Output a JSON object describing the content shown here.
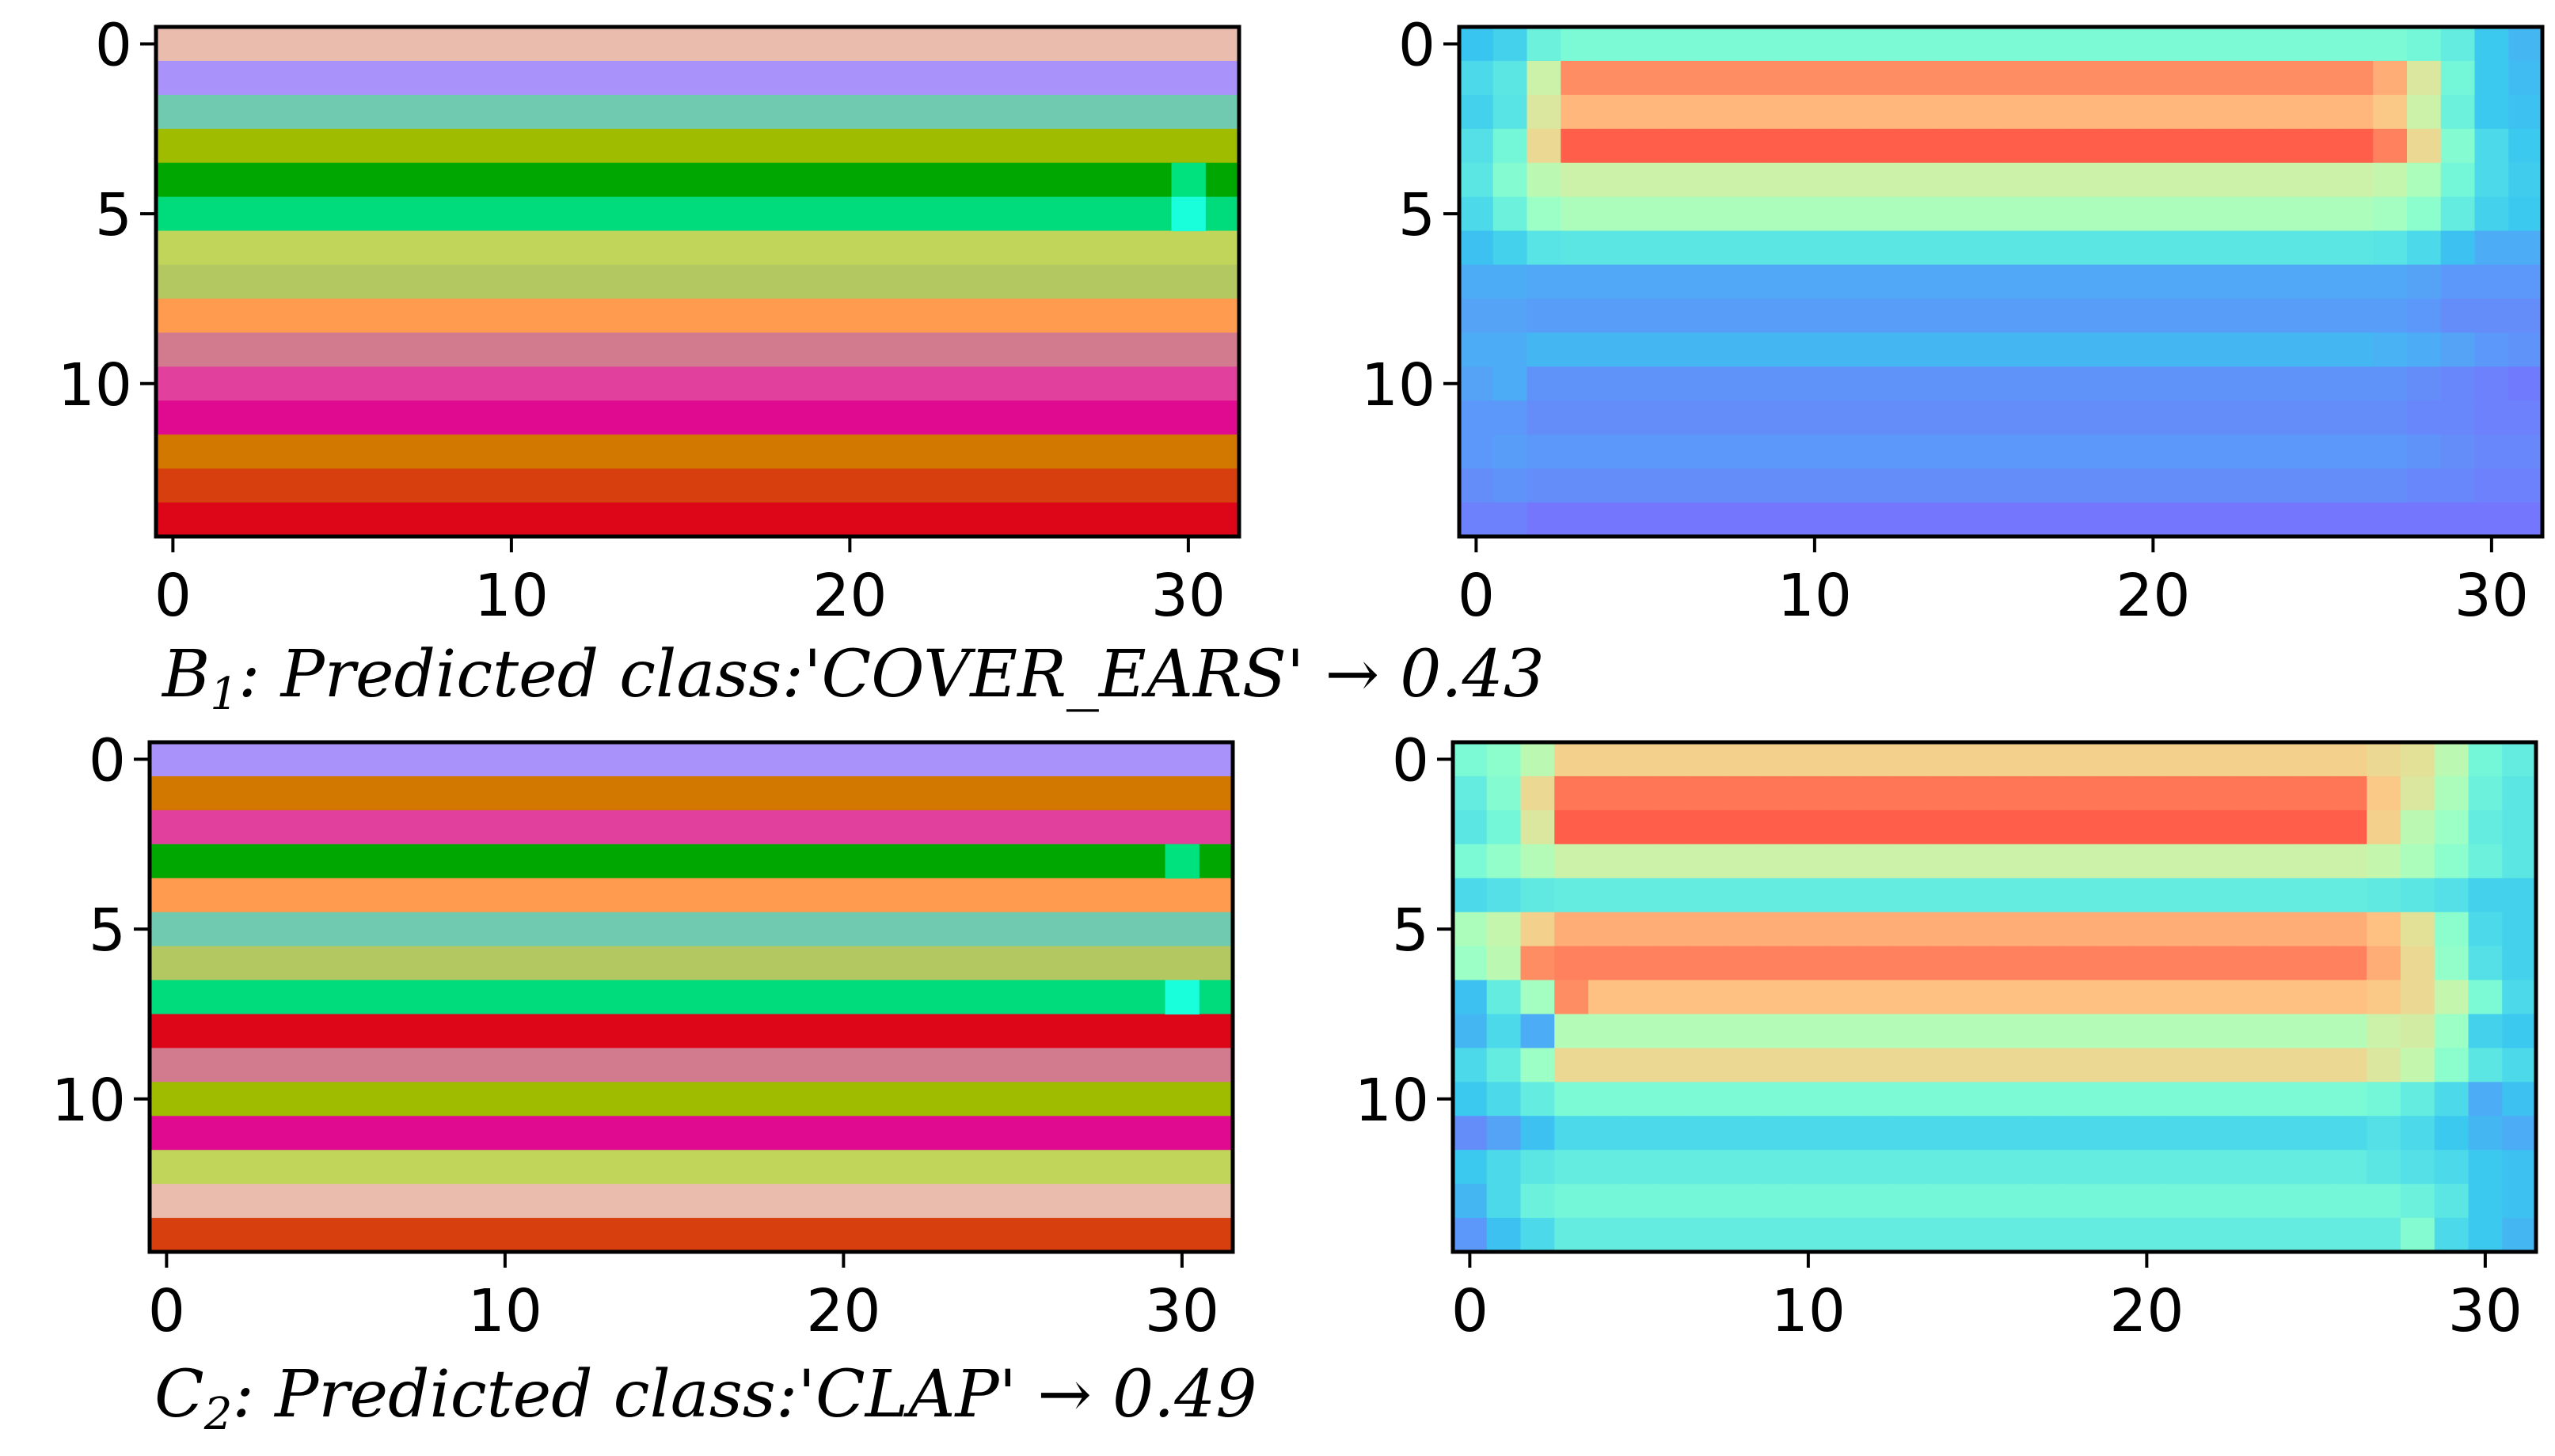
{
  "chart_data": [
    {
      "type": "heatmap",
      "panel": "B1-labels",
      "rows": 15,
      "cols": 32,
      "xlim": [
        -0.5,
        31.5
      ],
      "ylim": [
        14.5,
        -0.5
      ],
      "xticks": [
        "0",
        "10",
        "20",
        "30"
      ],
      "yticks": [
        "0",
        "5",
        "10"
      ],
      "row_colors": [
        "#E9BCAE",
        "#A993FA",
        "#6FCAB0",
        "#A0BC00",
        "#00A700",
        "#00DB7C",
        "#C1D55B",
        "#B3C860",
        "#FE9B4F",
        "#D27A8E",
        "#E1419D",
        "#E00A91",
        "#D27700",
        "#D7400E",
        "#DD0619"
      ],
      "overrides": [
        {
          "row": 4,
          "col": 30,
          "color": "#00E27E"
        },
        {
          "row": 5,
          "col": 30,
          "color": "#19FEDB"
        }
      ]
    },
    {
      "type": "heatmap",
      "panel": "B1-activation",
      "rows": 15,
      "cols": 32,
      "xlim": [
        -0.5,
        31.5
      ],
      "ylim": [
        14.5,
        -0.5
      ],
      "xticks": [
        "0",
        "10",
        "20",
        "30"
      ],
      "yticks": [
        "0",
        "5",
        "10"
      ],
      "colormap": "rainbow",
      "values": [
        [
          0.25,
          0.28,
          0.38,
          0.42,
          0.42,
          0.42,
          0.42,
          0.42,
          0.42,
          0.42,
          0.42,
          0.42,
          0.42,
          0.42,
          0.42,
          0.42,
          0.42,
          0.42,
          0.42,
          0.42,
          0.42,
          0.42,
          0.42,
          0.42,
          0.42,
          0.42,
          0.42,
          0.42,
          0.4,
          0.36,
          0.26,
          0.22
        ],
        [
          0.3,
          0.34,
          0.62,
          0.86,
          0.86,
          0.86,
          0.86,
          0.86,
          0.86,
          0.86,
          0.86,
          0.86,
          0.86,
          0.86,
          0.86,
          0.86,
          0.86,
          0.86,
          0.86,
          0.86,
          0.86,
          0.86,
          0.86,
          0.86,
          0.86,
          0.86,
          0.86,
          0.8,
          0.66,
          0.4,
          0.26,
          0.23
        ],
        [
          0.28,
          0.33,
          0.66,
          0.78,
          0.78,
          0.78,
          0.78,
          0.78,
          0.78,
          0.78,
          0.78,
          0.78,
          0.78,
          0.78,
          0.78,
          0.78,
          0.78,
          0.78,
          0.78,
          0.78,
          0.78,
          0.78,
          0.78,
          0.78,
          0.78,
          0.78,
          0.78,
          0.74,
          0.62,
          0.38,
          0.26,
          0.24
        ],
        [
          0.32,
          0.4,
          0.7,
          0.94,
          0.94,
          0.94,
          0.94,
          0.94,
          0.94,
          0.94,
          0.94,
          0.94,
          0.94,
          0.94,
          0.94,
          0.94,
          0.94,
          0.94,
          0.94,
          0.94,
          0.94,
          0.94,
          0.94,
          0.94,
          0.94,
          0.94,
          0.94,
          0.88,
          0.7,
          0.44,
          0.3,
          0.26
        ],
        [
          0.34,
          0.44,
          0.58,
          0.62,
          0.62,
          0.62,
          0.62,
          0.62,
          0.62,
          0.62,
          0.62,
          0.62,
          0.62,
          0.62,
          0.62,
          0.62,
          0.62,
          0.62,
          0.62,
          0.62,
          0.62,
          0.62,
          0.62,
          0.62,
          0.62,
          0.62,
          0.62,
          0.6,
          0.54,
          0.4,
          0.3,
          0.27
        ],
        [
          0.3,
          0.38,
          0.5,
          0.54,
          0.54,
          0.54,
          0.54,
          0.54,
          0.54,
          0.54,
          0.54,
          0.54,
          0.54,
          0.54,
          0.54,
          0.54,
          0.54,
          0.54,
          0.54,
          0.54,
          0.54,
          0.54,
          0.54,
          0.54,
          0.54,
          0.54,
          0.54,
          0.52,
          0.46,
          0.36,
          0.28,
          0.26
        ],
        [
          0.24,
          0.28,
          0.33,
          0.34,
          0.34,
          0.34,
          0.34,
          0.34,
          0.34,
          0.34,
          0.34,
          0.34,
          0.34,
          0.34,
          0.34,
          0.34,
          0.34,
          0.34,
          0.34,
          0.34,
          0.34,
          0.34,
          0.34,
          0.34,
          0.34,
          0.34,
          0.34,
          0.33,
          0.3,
          0.24,
          0.2,
          0.2
        ],
        [
          0.2,
          0.2,
          0.19,
          0.19,
          0.19,
          0.19,
          0.19,
          0.19,
          0.19,
          0.19,
          0.19,
          0.19,
          0.19,
          0.19,
          0.19,
          0.19,
          0.19,
          0.19,
          0.19,
          0.19,
          0.19,
          0.19,
          0.19,
          0.19,
          0.19,
          0.19,
          0.19,
          0.19,
          0.18,
          0.16,
          0.16,
          0.16
        ],
        [
          0.18,
          0.18,
          0.17,
          0.17,
          0.17,
          0.17,
          0.17,
          0.17,
          0.17,
          0.17,
          0.17,
          0.17,
          0.17,
          0.17,
          0.17,
          0.17,
          0.17,
          0.17,
          0.17,
          0.17,
          0.17,
          0.17,
          0.17,
          0.17,
          0.17,
          0.17,
          0.17,
          0.17,
          0.16,
          0.14,
          0.14,
          0.14
        ],
        [
          0.2,
          0.2,
          0.22,
          0.22,
          0.22,
          0.22,
          0.22,
          0.22,
          0.22,
          0.22,
          0.22,
          0.22,
          0.22,
          0.22,
          0.22,
          0.22,
          0.22,
          0.22,
          0.22,
          0.22,
          0.22,
          0.22,
          0.22,
          0.22,
          0.22,
          0.22,
          0.22,
          0.21,
          0.2,
          0.18,
          0.16,
          0.15
        ],
        [
          0.18,
          0.2,
          0.15,
          0.15,
          0.15,
          0.15,
          0.15,
          0.15,
          0.15,
          0.15,
          0.15,
          0.15,
          0.15,
          0.15,
          0.15,
          0.15,
          0.15,
          0.15,
          0.15,
          0.15,
          0.15,
          0.15,
          0.15,
          0.15,
          0.15,
          0.15,
          0.15,
          0.15,
          0.14,
          0.13,
          0.12,
          0.11
        ],
        [
          0.16,
          0.16,
          0.14,
          0.14,
          0.14,
          0.14,
          0.14,
          0.14,
          0.14,
          0.14,
          0.14,
          0.14,
          0.14,
          0.14,
          0.14,
          0.14,
          0.14,
          0.14,
          0.14,
          0.14,
          0.14,
          0.14,
          0.14,
          0.14,
          0.14,
          0.14,
          0.14,
          0.14,
          0.13,
          0.13,
          0.12,
          0.12
        ],
        [
          0.16,
          0.17,
          0.16,
          0.16,
          0.16,
          0.16,
          0.16,
          0.16,
          0.16,
          0.16,
          0.16,
          0.16,
          0.16,
          0.16,
          0.16,
          0.16,
          0.16,
          0.16,
          0.16,
          0.16,
          0.16,
          0.16,
          0.16,
          0.16,
          0.16,
          0.16,
          0.16,
          0.16,
          0.15,
          0.14,
          0.13,
          0.13
        ],
        [
          0.14,
          0.15,
          0.14,
          0.14,
          0.14,
          0.14,
          0.14,
          0.14,
          0.14,
          0.14,
          0.14,
          0.14,
          0.14,
          0.14,
          0.14,
          0.14,
          0.14,
          0.14,
          0.14,
          0.14,
          0.14,
          0.14,
          0.14,
          0.14,
          0.14,
          0.14,
          0.14,
          0.14,
          0.13,
          0.13,
          0.12,
          0.12
        ],
        [
          0.12,
          0.12,
          0.1,
          0.1,
          0.1,
          0.1,
          0.1,
          0.1,
          0.1,
          0.1,
          0.1,
          0.1,
          0.1,
          0.1,
          0.1,
          0.1,
          0.1,
          0.1,
          0.1,
          0.1,
          0.1,
          0.1,
          0.1,
          0.1,
          0.1,
          0.1,
          0.1,
          0.1,
          0.1,
          0.1,
          0.1,
          0.1
        ]
      ]
    },
    {
      "type": "heatmap",
      "panel": "C2-labels",
      "rows": 15,
      "cols": 32,
      "xlim": [
        -0.5,
        31.5
      ],
      "ylim": [
        14.5,
        -0.5
      ],
      "xticks": [
        "0",
        "10",
        "20",
        "30"
      ],
      "yticks": [
        "0",
        "5",
        "10"
      ],
      "row_colors": [
        "#A993FA",
        "#D27700",
        "#E1419D",
        "#00A700",
        "#FE9B4F",
        "#6FCAB0",
        "#B3C860",
        "#00DB7C",
        "#DD0619",
        "#D27A8E",
        "#A0BC00",
        "#E00A91",
        "#C1D55B",
        "#E9BCAE",
        "#D7400E"
      ],
      "overrides": [
        {
          "row": 3,
          "col": 30,
          "color": "#00E27E"
        },
        {
          "row": 7,
          "col": 30,
          "color": "#19FEDB"
        }
      ]
    },
    {
      "type": "heatmap",
      "panel": "C2-activation",
      "rows": 15,
      "cols": 32,
      "xlim": [
        -0.5,
        31.5
      ],
      "ylim": [
        14.5,
        -0.5
      ],
      "xticks": [
        "0",
        "10",
        "20",
        "30"
      ],
      "yticks": [
        "0",
        "5",
        "10"
      ],
      "colormap": "rainbow",
      "values": [
        [
          0.42,
          0.46,
          0.58,
          0.72,
          0.72,
          0.72,
          0.72,
          0.72,
          0.72,
          0.72,
          0.72,
          0.72,
          0.72,
          0.72,
          0.72,
          0.72,
          0.72,
          0.72,
          0.72,
          0.72,
          0.72,
          0.72,
          0.72,
          0.72,
          0.72,
          0.72,
          0.72,
          0.7,
          0.68,
          0.58,
          0.4,
          0.36
        ],
        [
          0.36,
          0.44,
          0.7,
          0.9,
          0.9,
          0.9,
          0.9,
          0.9,
          0.9,
          0.9,
          0.9,
          0.9,
          0.9,
          0.9,
          0.9,
          0.9,
          0.9,
          0.9,
          0.9,
          0.9,
          0.9,
          0.9,
          0.9,
          0.9,
          0.9,
          0.9,
          0.9,
          0.74,
          0.66,
          0.54,
          0.38,
          0.34
        ],
        [
          0.34,
          0.4,
          0.66,
          0.94,
          0.94,
          0.94,
          0.94,
          0.94,
          0.94,
          0.94,
          0.94,
          0.94,
          0.94,
          0.94,
          0.94,
          0.94,
          0.94,
          0.94,
          0.94,
          0.94,
          0.94,
          0.94,
          0.94,
          0.94,
          0.94,
          0.94,
          0.94,
          0.72,
          0.58,
          0.5,
          0.36,
          0.34
        ],
        [
          0.42,
          0.48,
          0.56,
          0.62,
          0.62,
          0.62,
          0.62,
          0.62,
          0.62,
          0.62,
          0.62,
          0.62,
          0.62,
          0.62,
          0.62,
          0.62,
          0.62,
          0.62,
          0.62,
          0.62,
          0.62,
          0.62,
          0.62,
          0.62,
          0.62,
          0.62,
          0.62,
          0.6,
          0.54,
          0.46,
          0.38,
          0.34
        ],
        [
          0.3,
          0.32,
          0.35,
          0.36,
          0.36,
          0.36,
          0.36,
          0.36,
          0.36,
          0.36,
          0.36,
          0.36,
          0.36,
          0.36,
          0.36,
          0.36,
          0.36,
          0.36,
          0.36,
          0.36,
          0.36,
          0.36,
          0.36,
          0.36,
          0.36,
          0.36,
          0.36,
          0.35,
          0.34,
          0.32,
          0.28,
          0.28
        ],
        [
          0.54,
          0.6,
          0.72,
          0.8,
          0.8,
          0.8,
          0.8,
          0.8,
          0.8,
          0.8,
          0.8,
          0.8,
          0.8,
          0.8,
          0.8,
          0.8,
          0.8,
          0.8,
          0.8,
          0.8,
          0.8,
          0.8,
          0.8,
          0.8,
          0.8,
          0.8,
          0.8,
          0.76,
          0.68,
          0.46,
          0.3,
          0.28
        ],
        [
          0.5,
          0.58,
          0.86,
          0.88,
          0.88,
          0.88,
          0.88,
          0.88,
          0.88,
          0.88,
          0.88,
          0.88,
          0.88,
          0.88,
          0.88,
          0.88,
          0.88,
          0.88,
          0.88,
          0.88,
          0.88,
          0.88,
          0.88,
          0.88,
          0.88,
          0.88,
          0.88,
          0.8,
          0.7,
          0.48,
          0.32,
          0.28
        ],
        [
          0.24,
          0.36,
          0.52,
          0.86,
          0.76,
          0.76,
          0.76,
          0.76,
          0.76,
          0.76,
          0.76,
          0.76,
          0.76,
          0.76,
          0.76,
          0.76,
          0.76,
          0.76,
          0.76,
          0.76,
          0.76,
          0.76,
          0.76,
          0.76,
          0.76,
          0.76,
          0.76,
          0.74,
          0.7,
          0.6,
          0.42,
          0.3
        ],
        [
          0.22,
          0.3,
          0.2,
          0.56,
          0.56,
          0.56,
          0.56,
          0.56,
          0.56,
          0.56,
          0.56,
          0.56,
          0.56,
          0.56,
          0.56,
          0.56,
          0.56,
          0.56,
          0.56,
          0.56,
          0.56,
          0.56,
          0.56,
          0.56,
          0.56,
          0.56,
          0.56,
          0.62,
          0.64,
          0.5,
          0.28,
          0.26
        ],
        [
          0.3,
          0.36,
          0.5,
          0.7,
          0.7,
          0.7,
          0.7,
          0.7,
          0.7,
          0.7,
          0.7,
          0.7,
          0.7,
          0.7,
          0.7,
          0.7,
          0.7,
          0.7,
          0.7,
          0.7,
          0.7,
          0.7,
          0.7,
          0.7,
          0.7,
          0.7,
          0.7,
          0.66,
          0.6,
          0.46,
          0.34,
          0.3
        ],
        [
          0.26,
          0.3,
          0.36,
          0.42,
          0.42,
          0.42,
          0.42,
          0.42,
          0.42,
          0.42,
          0.42,
          0.42,
          0.42,
          0.42,
          0.42,
          0.42,
          0.42,
          0.42,
          0.42,
          0.42,
          0.42,
          0.42,
          0.42,
          0.42,
          0.42,
          0.42,
          0.42,
          0.4,
          0.36,
          0.3,
          0.2,
          0.24
        ],
        [
          0.14,
          0.18,
          0.24,
          0.3,
          0.3,
          0.3,
          0.3,
          0.3,
          0.3,
          0.3,
          0.3,
          0.3,
          0.3,
          0.3,
          0.3,
          0.3,
          0.3,
          0.3,
          0.3,
          0.3,
          0.3,
          0.3,
          0.3,
          0.3,
          0.3,
          0.3,
          0.3,
          0.32,
          0.3,
          0.26,
          0.22,
          0.2
        ],
        [
          0.26,
          0.3,
          0.34,
          0.36,
          0.36,
          0.36,
          0.36,
          0.36,
          0.36,
          0.36,
          0.36,
          0.36,
          0.36,
          0.36,
          0.36,
          0.36,
          0.36,
          0.36,
          0.36,
          0.36,
          0.36,
          0.36,
          0.36,
          0.36,
          0.36,
          0.36,
          0.36,
          0.34,
          0.32,
          0.3,
          0.26,
          0.24
        ],
        [
          0.22,
          0.3,
          0.38,
          0.4,
          0.4,
          0.4,
          0.4,
          0.4,
          0.4,
          0.4,
          0.4,
          0.4,
          0.4,
          0.4,
          0.4,
          0.4,
          0.4,
          0.4,
          0.4,
          0.4,
          0.4,
          0.4,
          0.4,
          0.4,
          0.4,
          0.4,
          0.4,
          0.4,
          0.38,
          0.34,
          0.26,
          0.24
        ],
        [
          0.16,
          0.24,
          0.3,
          0.36,
          0.36,
          0.36,
          0.36,
          0.36,
          0.36,
          0.36,
          0.36,
          0.36,
          0.36,
          0.36,
          0.36,
          0.36,
          0.36,
          0.36,
          0.36,
          0.36,
          0.36,
          0.36,
          0.36,
          0.36,
          0.36,
          0.36,
          0.36,
          0.36,
          0.44,
          0.3,
          0.26,
          0.22
        ]
      ]
    }
  ],
  "captions": {
    "b1": {
      "letter": "B",
      "sub": "1",
      "text": ": Predicted class:'COVER_EARS' → 0.43"
    },
    "c2": {
      "letter": "C",
      "sub": "2",
      "text": ": Predicted class:'CLAP' → 0.49"
    }
  }
}
